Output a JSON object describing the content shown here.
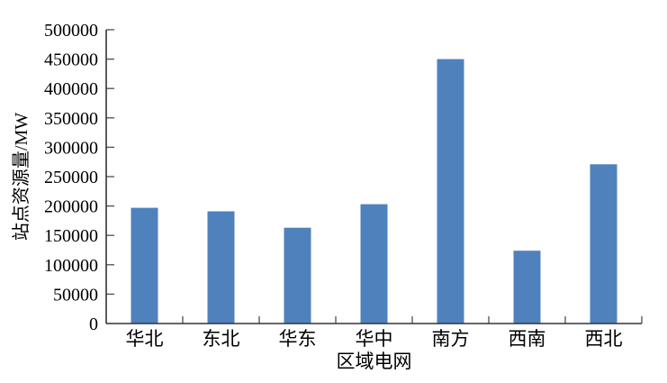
{
  "chart_data": {
    "type": "bar",
    "title": "",
    "categories": [
      "华北",
      "东北",
      "华东",
      "华中",
      "南方",
      "西南",
      "西北"
    ],
    "values": [
      197000,
      191000,
      163000,
      203000,
      450000,
      124000,
      271000
    ],
    "xlabel": "区域电网",
    "ylabel": "站点资源量/MW",
    "ylim": [
      0,
      500000
    ],
    "ytick_step": 50000,
    "ytick_labels": [
      "0",
      "50000",
      "100000",
      "150000",
      "200000",
      "250000",
      "300000",
      "350000",
      "400000",
      "450000",
      "500000"
    ],
    "grid": false,
    "legend": null,
    "bar_color": "#4F81BD",
    "axis_color": "#333333",
    "tick_color": "#4d4d4d",
    "text_color": "#000000"
  }
}
